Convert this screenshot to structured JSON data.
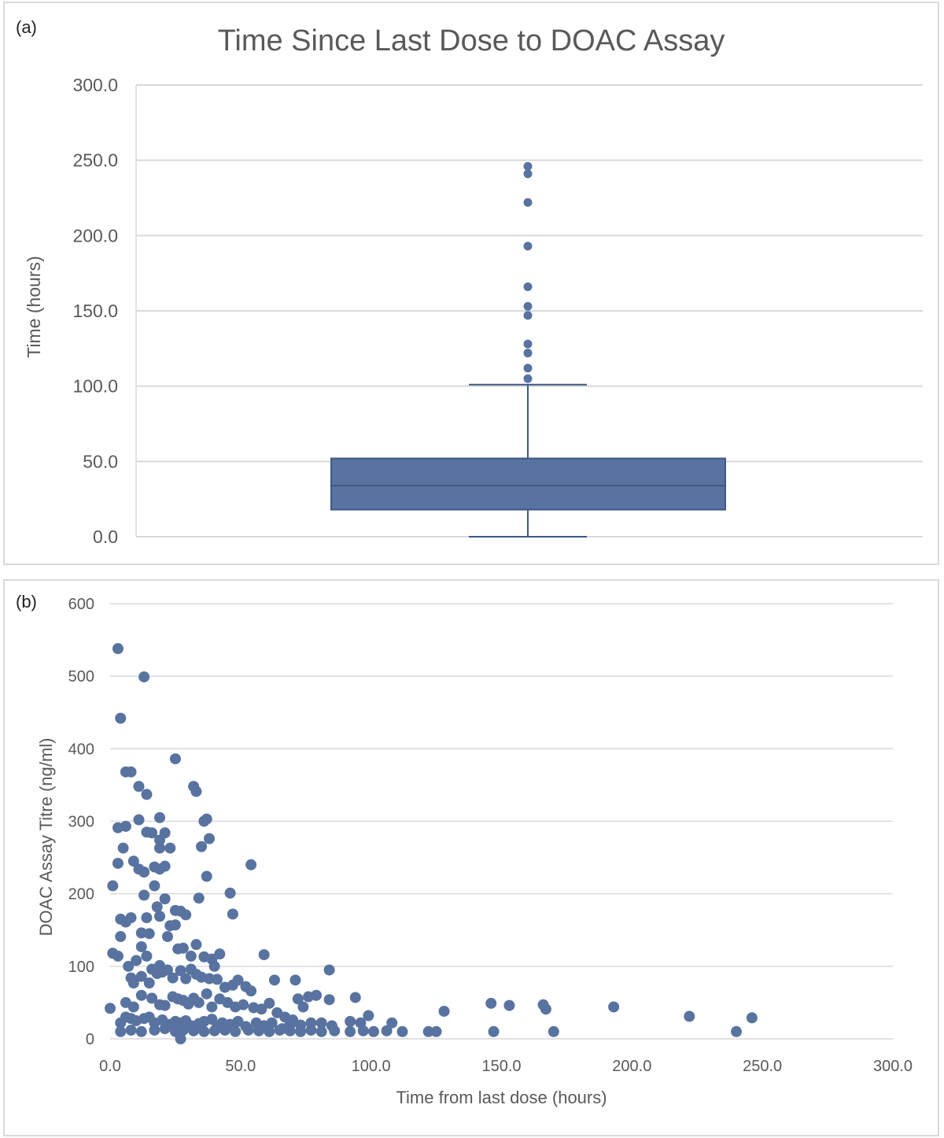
{
  "colors": {
    "series": "#5873a0",
    "seriesDark": "#3f5882",
    "grid": "#d9d9d9",
    "text": "#595959"
  },
  "chart_data": [
    {
      "panel_label": "(a)",
      "type": "box",
      "title": "Time Since Last Dose to DOAC Assay",
      "xlabel": "",
      "ylabel": "Time (hours)",
      "ylim": [
        0,
        300
      ],
      "yticks": [
        "0.0",
        "50.0",
        "100.0",
        "150.0",
        "200.0",
        "250.0",
        "300.0"
      ],
      "grid": true,
      "box": {
        "min": 0,
        "q1": 18,
        "median": 34,
        "q3": 52,
        "max": 101
      },
      "outliers": [
        105,
        112,
        122,
        128,
        147,
        153,
        166,
        193,
        222,
        241,
        246
      ]
    },
    {
      "panel_label": "(b)",
      "type": "scatter",
      "title": "",
      "xlabel": "Time from last dose (hours)",
      "ylabel": "DOAC Assay Titre (ng/ml)",
      "xlim": [
        0,
        300
      ],
      "ylim": [
        0,
        600
      ],
      "xticks": [
        "0.0",
        "50.0",
        "100.0",
        "150.0",
        "200.0",
        "250.0",
        "300.0"
      ],
      "yticks": [
        "0",
        "100",
        "200",
        "300",
        "400",
        "500",
        "600"
      ],
      "grid": true,
      "points": [
        [
          3,
          538
        ],
        [
          13,
          499
        ],
        [
          4,
          442
        ],
        [
          6,
          368
        ],
        [
          8,
          368
        ],
        [
          25,
          386
        ],
        [
          11,
          348
        ],
        [
          14,
          337
        ],
        [
          32,
          348
        ],
        [
          33,
          341
        ],
        [
          11,
          302
        ],
        [
          19,
          305
        ],
        [
          36,
          300
        ],
        [
          37,
          303
        ],
        [
          3,
          291
        ],
        [
          6,
          293
        ],
        [
          14,
          285
        ],
        [
          16,
          284
        ],
        [
          21,
          284
        ],
        [
          19,
          274
        ],
        [
          35,
          265
        ],
        [
          38,
          276
        ],
        [
          5,
          263
        ],
        [
          19,
          263
        ],
        [
          23,
          263
        ],
        [
          3,
          242
        ],
        [
          9,
          245
        ],
        [
          11,
          234
        ],
        [
          13,
          230
        ],
        [
          17,
          237
        ],
        [
          19,
          234
        ],
        [
          21,
          238
        ],
        [
          54,
          240
        ],
        [
          37,
          224
        ],
        [
          1,
          211
        ],
        [
          17,
          211
        ],
        [
          13,
          198
        ],
        [
          21,
          193
        ],
        [
          34,
          194
        ],
        [
          46,
          201
        ],
        [
          4,
          165
        ],
        [
          6,
          161
        ],
        [
          8,
          167
        ],
        [
          14,
          167
        ],
        [
          19,
          169
        ],
        [
          25,
          177
        ],
        [
          27,
          176
        ],
        [
          29,
          171
        ],
        [
          47,
          172
        ],
        [
          4,
          141
        ],
        [
          12,
          146
        ],
        [
          15,
          145
        ],
        [
          22,
          141
        ],
        [
          23,
          156
        ],
        [
          25,
          157
        ],
        [
          18,
          182
        ],
        [
          1,
          118
        ],
        [
          3,
          114
        ],
        [
          7,
          100
        ],
        [
          10,
          108
        ],
        [
          12,
          127
        ],
        [
          14,
          114
        ],
        [
          16,
          96
        ],
        [
          19,
          101
        ],
        [
          22,
          95
        ],
        [
          26,
          124
        ],
        [
          28,
          125
        ],
        [
          31,
          114
        ],
        [
          33,
          130
        ],
        [
          36,
          113
        ],
        [
          39,
          110
        ],
        [
          42,
          117
        ],
        [
          40,
          100
        ],
        [
          59,
          116
        ],
        [
          84,
          95
        ],
        [
          8,
          84
        ],
        [
          9,
          77
        ],
        [
          12,
          86
        ],
        [
          15,
          77
        ],
        [
          18,
          90
        ],
        [
          20,
          92
        ],
        [
          24,
          84
        ],
        [
          27,
          94
        ],
        [
          29,
          83
        ],
        [
          31,
          96
        ],
        [
          33,
          89
        ],
        [
          35,
          85
        ],
        [
          38,
          83
        ],
        [
          41,
          82
        ],
        [
          44,
          71
        ],
        [
          47,
          74
        ],
        [
          49,
          81
        ],
        [
          52,
          72
        ],
        [
          54,
          66
        ],
        [
          63,
          81
        ],
        [
          71,
          81
        ],
        [
          6,
          50
        ],
        [
          9,
          44
        ],
        [
          12,
          60
        ],
        [
          16,
          56
        ],
        [
          19,
          47
        ],
        [
          21,
          46
        ],
        [
          24,
          58
        ],
        [
          26,
          55
        ],
        [
          28,
          53
        ],
        [
          30,
          48
        ],
        [
          32,
          56
        ],
        [
          34,
          50
        ],
        [
          37,
          62
        ],
        [
          39,
          44
        ],
        [
          42,
          55
        ],
        [
          45,
          50
        ],
        [
          48,
          44
        ],
        [
          51,
          47
        ],
        [
          55,
          43
        ],
        [
          58,
          41
        ],
        [
          61,
          49
        ],
        [
          64,
          36
        ],
        [
          67,
          30
        ],
        [
          70,
          26
        ],
        [
          72,
          55
        ],
        [
          74,
          44
        ],
        [
          76,
          58
        ],
        [
          79,
          60
        ],
        [
          84,
          54
        ],
        [
          94,
          57
        ],
        [
          0,
          42
        ],
        [
          4,
          22
        ],
        [
          6,
          30
        ],
        [
          8,
          28
        ],
        [
          10,
          25
        ],
        [
          13,
          28
        ],
        [
          15,
          30
        ],
        [
          17,
          22
        ],
        [
          20,
          26
        ],
        [
          23,
          20
        ],
        [
          25,
          24
        ],
        [
          27,
          22
        ],
        [
          29,
          25
        ],
        [
          31,
          18
        ],
        [
          34,
          21
        ],
        [
          36,
          24
        ],
        [
          39,
          27
        ],
        [
          41,
          16
        ],
        [
          43,
          22
        ],
        [
          46,
          20
        ],
        [
          49,
          24
        ],
        [
          52,
          17
        ],
        [
          56,
          22
        ],
        [
          59,
          18
        ],
        [
          62,
          22
        ],
        [
          66,
          14
        ],
        [
          69,
          20
        ],
        [
          73,
          19
        ],
        [
          77,
          22
        ],
        [
          81,
          22
        ],
        [
          85,
          18
        ],
        [
          92,
          24
        ],
        [
          96,
          22
        ],
        [
          99,
          32
        ],
        [
          108,
          22
        ],
        [
          4,
          10
        ],
        [
          8,
          12
        ],
        [
          12,
          10
        ],
        [
          17,
          12
        ],
        [
          21,
          14
        ],
        [
          25,
          10
        ],
        [
          28,
          12
        ],
        [
          32,
          11
        ],
        [
          36,
          10
        ],
        [
          40,
          11
        ],
        [
          44,
          12
        ],
        [
          48,
          10
        ],
        [
          53,
          12
        ],
        [
          57,
          11
        ],
        [
          61,
          10
        ],
        [
          65,
          12
        ],
        [
          69,
          11
        ],
        [
          73,
          10
        ],
        [
          77,
          12
        ],
        [
          81,
          10
        ],
        [
          86,
          11
        ],
        [
          92,
          10
        ],
        [
          97,
          11
        ],
        [
          101,
          10
        ],
        [
          106,
          11
        ],
        [
          112,
          10
        ],
        [
          122,
          10
        ],
        [
          125,
          10
        ],
        [
          147,
          10
        ],
        [
          170,
          10
        ],
        [
          240,
          10
        ],
        [
          27,
          0
        ],
        [
          146,
          49
        ],
        [
          153,
          46
        ],
        [
          166,
          47
        ],
        [
          167,
          41
        ],
        [
          128,
          38
        ],
        [
          193,
          44
        ],
        [
          222,
          31
        ],
        [
          246,
          29
        ]
      ]
    }
  ]
}
